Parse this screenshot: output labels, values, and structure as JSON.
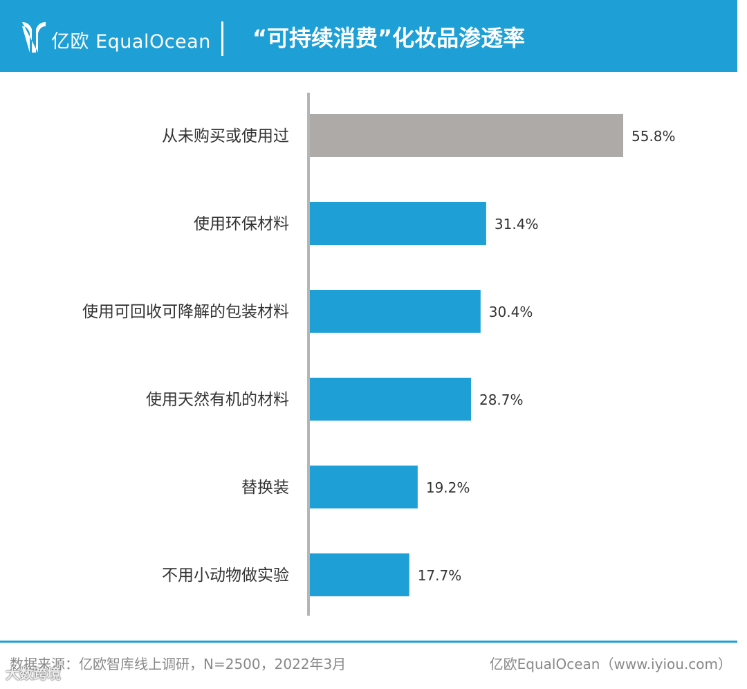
{
  "header": {
    "brand": "亿欧 EqualOcean",
    "title": "“可持续消费”化妆品渗透率"
  },
  "colors": {
    "header_bg": "#1e9fd6",
    "bar_default": "#1e9fd6",
    "bar_highlight": "#aeaaa8",
    "axis": "#b5b5b5",
    "footer_line": "#1e9fd6"
  },
  "chart_data": {
    "type": "bar",
    "orientation": "horizontal",
    "categories": [
      "从未购买或使用过",
      "使用环保材料",
      "使用可回收可降解的包装材料",
      "使用天然有机的材料",
      "替换装",
      "不用小动物做实验"
    ],
    "values": [
      55.8,
      31.4,
      30.4,
      28.7,
      19.2,
      17.7
    ],
    "data_labels": [
      "55.8%",
      "31.4%",
      "30.4%",
      "28.7%",
      "19.2%",
      "17.7%"
    ],
    "highlight_index": 0,
    "xlim": [
      0,
      60
    ],
    "grid": false,
    "title": "“可持续消费”化妆品渗透率"
  },
  "footer": {
    "source": "数据来源：亿欧智库线上调研，N=2500，2022年3月",
    "credit": "亿欧EqualOcean（www.iyiou.com）",
    "watermark": "大数跨境"
  }
}
